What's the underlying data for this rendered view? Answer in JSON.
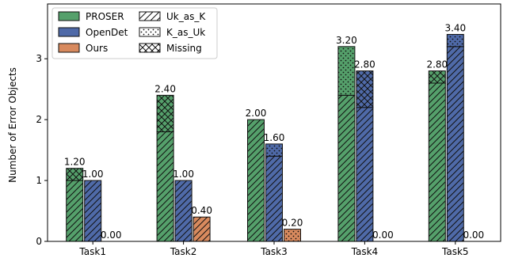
{
  "chart_data": {
    "type": "bar",
    "stacked": true,
    "categories": [
      "Task1",
      "Task2",
      "Task3",
      "Task4",
      "Task5"
    ],
    "ylabel": "Number of Error Objects",
    "xlabel": "",
    "title": "",
    "ylim": [
      0,
      3.9
    ],
    "yticks": [
      "0",
      "1",
      "2",
      "3"
    ],
    "grid": false,
    "legend_position": "top-left",
    "methods": [
      {
        "name": "PROSER",
        "color": "#55a06b",
        "totals": [
          1.2,
          2.4,
          2.0,
          3.2,
          2.8
        ],
        "total_labels": [
          "1.20",
          "2.40",
          "2.00",
          "3.20",
          "2.80"
        ],
        "segments": {
          "Uk_as_K": [
            1.0,
            1.8,
            2.0,
            2.4,
            2.6
          ],
          "K_as_Uk": [
            0.0,
            0.0,
            0.0,
            0.8,
            0.0
          ],
          "Missing": [
            0.2,
            0.6,
            0.0,
            0.0,
            0.2
          ]
        }
      },
      {
        "name": "OpenDet",
        "color": "#4f6aa8",
        "totals": [
          1.0,
          1.0,
          1.6,
          2.8,
          3.4
        ],
        "total_labels": [
          "1.00",
          "1.00",
          "1.60",
          "2.80",
          "3.40"
        ],
        "segments": {
          "Uk_as_K": [
            1.0,
            1.0,
            1.4,
            2.2,
            3.2
          ],
          "K_as_Uk": [
            0.0,
            0.0,
            0.2,
            0.0,
            0.2
          ],
          "Missing": [
            0.0,
            0.0,
            0.0,
            0.6,
            0.0
          ]
        }
      },
      {
        "name": "Ours",
        "color": "#d88a5e",
        "totals": [
          0.0,
          0.4,
          0.2,
          0.0,
          0.0
        ],
        "total_labels": [
          "0.00",
          "0.40",
          "0.20",
          "0.00",
          "0.00"
        ],
        "segments": {
          "Uk_as_K": [
            0.0,
            0.4,
            0.0,
            0.0,
            0.0
          ],
          "K_as_Uk": [
            0.0,
            0.0,
            0.2,
            0.0,
            0.0
          ],
          "Missing": [
            0.0,
            0.0,
            0.0,
            0.0,
            0.0
          ]
        }
      }
    ],
    "error_types": [
      {
        "key": "Uk_as_K",
        "label": "Uk_as_K",
        "pattern": "diagonal-hatch"
      },
      {
        "key": "K_as_Uk",
        "label": "K_as_Uk",
        "pattern": "dots"
      },
      {
        "key": "Missing",
        "label": "Missing",
        "pattern": "cross-hatch"
      }
    ]
  }
}
